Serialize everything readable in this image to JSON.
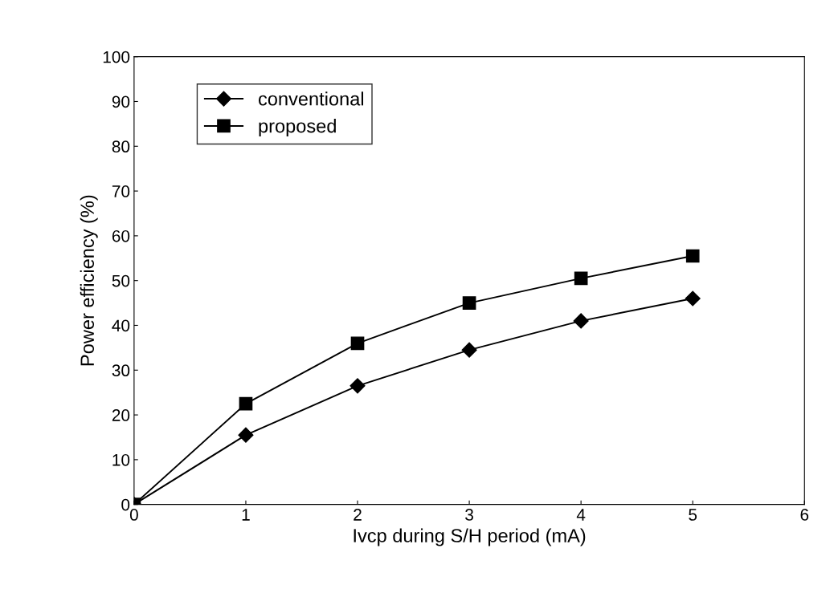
{
  "chart_data": {
    "type": "line",
    "xlabel": "Ivcp during S/H period (mA)",
    "ylabel": "Power efficiency (%)",
    "x": [
      0,
      1,
      2,
      3,
      4,
      5
    ],
    "series": [
      {
        "name": "conventional",
        "color": "#000000",
        "marker": "diamond",
        "values": [
          0,
          15.5,
          26.5,
          34.5,
          41,
          46
        ]
      },
      {
        "name": "proposed",
        "color": "#000000",
        "marker": "square",
        "values": [
          0,
          22.5,
          36,
          45,
          50.5,
          55.5
        ]
      }
    ],
    "xlim": [
      0,
      6
    ],
    "xticks": [
      0,
      1,
      2,
      3,
      4,
      5,
      6
    ],
    "ylim": [
      0,
      100
    ],
    "yticks": [
      0,
      10,
      20,
      30,
      40,
      50,
      60,
      70,
      80,
      90,
      100
    ],
    "grid": false,
    "legend": "top left",
    "line_style": "solid"
  }
}
